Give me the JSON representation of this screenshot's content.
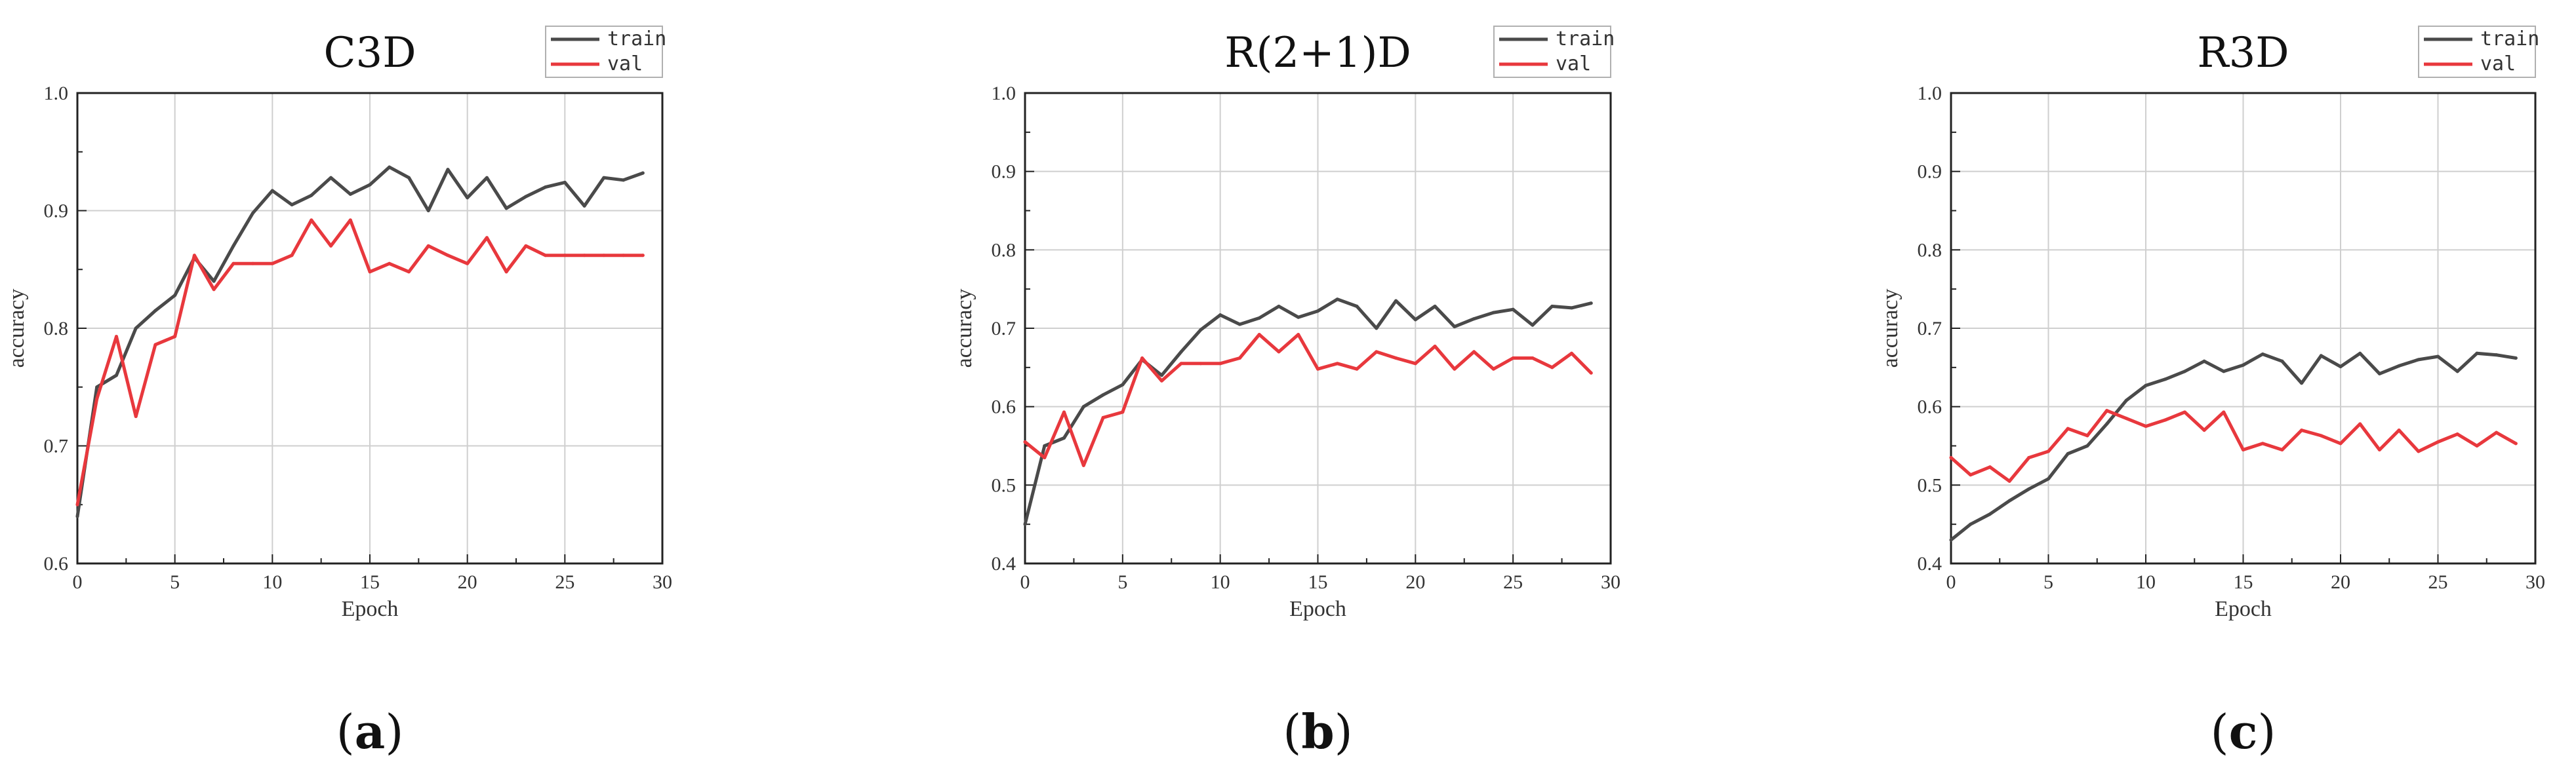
{
  "colors": {
    "train": "#4a4a4a",
    "val": "#e8383d",
    "grid": "#cfcfcf",
    "axis": "#222222"
  },
  "chart_data": [
    {
      "type": "line",
      "title": "C3D",
      "caption": {
        "open": "(",
        "letter": "a",
        "close": ")"
      },
      "xlabel": "Epoch",
      "ylabel": "accuracy",
      "xlim": [
        0,
        30
      ],
      "ylim": [
        0.6,
        1.0
      ],
      "xticks": [
        0,
        5,
        10,
        15,
        20,
        25,
        30
      ],
      "yticks": [
        0.6,
        0.7,
        0.8,
        0.9,
        1.0
      ],
      "ytick_labels": [
        "0.6",
        "0.7",
        "0.8",
        "0.9",
        "1.0"
      ],
      "grid": true,
      "legend": "top-right",
      "x": [
        0,
        1,
        2,
        3,
        4,
        5,
        6,
        7,
        8,
        9,
        10,
        11,
        12,
        13,
        14,
        15,
        16,
        17,
        18,
        19,
        20,
        21,
        22,
        23,
        24,
        25,
        26,
        27,
        28,
        29
      ],
      "series": [
        {
          "name": "train",
          "values": [
            0.64,
            0.75,
            0.76,
            0.8,
            0.815,
            0.828,
            0.86,
            0.84,
            0.87,
            0.898,
            0.917,
            0.905,
            0.913,
            0.928,
            0.914,
            0.922,
            0.937,
            0.928,
            0.9,
            0.935,
            0.911,
            0.928,
            0.902,
            0.912,
            0.92,
            0.924,
            0.904,
            0.928,
            0.926,
            0.932
          ]
        },
        {
          "name": "val",
          "values": [
            0.65,
            0.74,
            0.793,
            0.725,
            0.786,
            0.793,
            0.862,
            0.833,
            0.855,
            0.855,
            0.855,
            0.862,
            0.892,
            0.87,
            0.892,
            0.848,
            0.855,
            0.848,
            0.87,
            0.862,
            0.855,
            0.877,
            0.848,
            0.87,
            0.862,
            0.862,
            0.862,
            0.862,
            0.862,
            0.862
          ]
        }
      ]
    },
    {
      "type": "line",
      "title": "R(2+1)D",
      "caption": {
        "open": "(",
        "letter": "b",
        "close": ")"
      },
      "xlabel": "Epoch",
      "ylabel": "accuracy",
      "xlim": [
        0,
        30
      ],
      "ylim": [
        0.4,
        1.0
      ],
      "xticks": [
        0,
        5,
        10,
        15,
        20,
        25,
        30
      ],
      "yticks": [
        0.4,
        0.5,
        0.6,
        0.7,
        0.8,
        0.9,
        1.0
      ],
      "ytick_labels": [
        "0.4",
        "0.5",
        "0.6",
        "0.7",
        "0.8",
        "0.9",
        "1.0"
      ],
      "grid": true,
      "legend": "top-right",
      "x": [
        0,
        1,
        2,
        3,
        4,
        5,
        6,
        7,
        8,
        9,
        10,
        11,
        12,
        13,
        14,
        15,
        16,
        17,
        18,
        19,
        20,
        21,
        22,
        23,
        24,
        25,
        26,
        27,
        28,
        29
      ],
      "series": [
        {
          "name": "train",
          "values": [
            0.45,
            0.55,
            0.56,
            0.6,
            0.615,
            0.628,
            0.66,
            0.64,
            0.67,
            0.698,
            0.717,
            0.705,
            0.713,
            0.728,
            0.714,
            0.722,
            0.737,
            0.728,
            0.7,
            0.735,
            0.711,
            0.728,
            0.702,
            0.712,
            0.72,
            0.724,
            0.704,
            0.728,
            0.726,
            0.732
          ]
        },
        {
          "name": "val",
          "values": [
            0.555,
            0.535,
            0.593,
            0.525,
            0.586,
            0.593,
            0.662,
            0.633,
            0.655,
            0.655,
            0.655,
            0.662,
            0.692,
            0.67,
            0.692,
            0.648,
            0.655,
            0.648,
            0.67,
            0.662,
            0.655,
            0.677,
            0.648,
            0.67,
            0.648,
            0.662,
            0.662,
            0.65,
            0.668,
            0.643
          ]
        }
      ]
    },
    {
      "type": "line",
      "title": "R3D",
      "caption": {
        "open": "(",
        "letter": "c",
        "close": ")"
      },
      "xlabel": "Epoch",
      "ylabel": "accuracy",
      "xlim": [
        0,
        30
      ],
      "ylim": [
        0.4,
        1.0
      ],
      "xticks": [
        0,
        5,
        10,
        15,
        20,
        25,
        30
      ],
      "yticks": [
        0.4,
        0.5,
        0.6,
        0.7,
        0.8,
        0.9,
        1.0
      ],
      "ytick_labels": [
        "0.4",
        "0.5",
        "0.6",
        "0.7",
        "0.8",
        "0.9",
        "1.0"
      ],
      "grid": true,
      "legend": "top-right",
      "x": [
        0,
        1,
        2,
        3,
        4,
        5,
        6,
        7,
        8,
        9,
        10,
        11,
        12,
        13,
        14,
        15,
        16,
        17,
        18,
        19,
        20,
        21,
        22,
        23,
        24,
        25,
        26,
        27,
        28,
        29
      ],
      "series": [
        {
          "name": "train",
          "values": [
            0.43,
            0.45,
            0.463,
            0.48,
            0.495,
            0.508,
            0.54,
            0.55,
            0.578,
            0.608,
            0.627,
            0.635,
            0.645,
            0.658,
            0.645,
            0.653,
            0.667,
            0.658,
            0.63,
            0.665,
            0.651,
            0.668,
            0.642,
            0.652,
            0.66,
            0.664,
            0.645,
            0.668,
            0.666,
            0.662
          ]
        },
        {
          "name": "val",
          "values": [
            0.535,
            0.513,
            0.523,
            0.505,
            0.535,
            0.543,
            0.572,
            0.563,
            0.595,
            0.585,
            0.575,
            0.583,
            0.593,
            0.57,
            0.593,
            0.545,
            0.553,
            0.545,
            0.57,
            0.563,
            0.553,
            0.578,
            0.545,
            0.57,
            0.543,
            0.555,
            0.565,
            0.55,
            0.567,
            0.553
          ]
        }
      ]
    }
  ]
}
